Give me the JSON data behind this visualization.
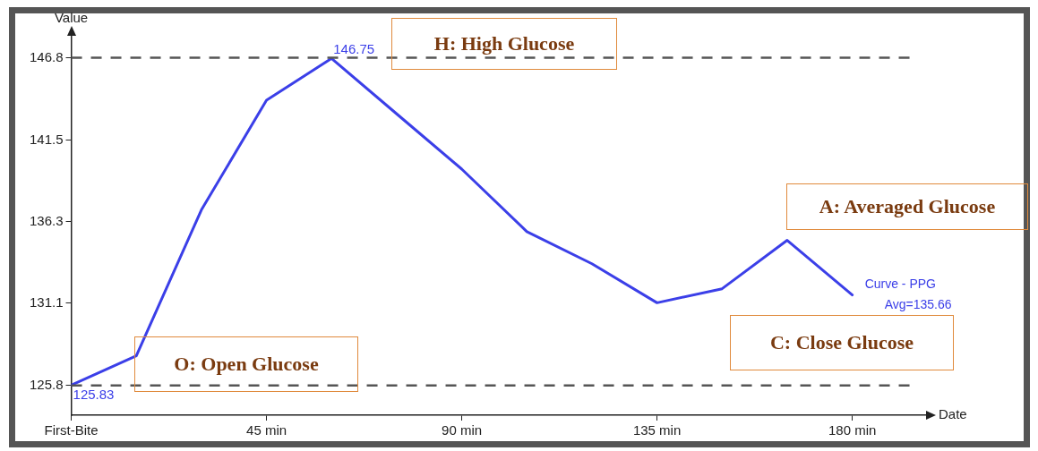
{
  "chart_data": {
    "type": "line",
    "xlabel": "Date",
    "ylabel": "Value",
    "x": [
      0,
      15,
      30,
      45,
      60,
      75,
      90,
      105,
      120,
      135,
      150,
      165,
      180
    ],
    "xlim": [
      0,
      197
    ],
    "xticks": [
      {
        "value": 0,
        "label": "First-Bite"
      },
      {
        "value": 45,
        "label": "45 min"
      },
      {
        "value": 90,
        "label": "90 min"
      },
      {
        "value": 135,
        "label": "135 min"
      },
      {
        "value": 180,
        "label": "180 min"
      }
    ],
    "ylim": [
      123.9,
      148.2
    ],
    "yticks": [
      125.8,
      131.1,
      136.3,
      141.5,
      146.8
    ],
    "series": [
      {
        "name": "Curve - PPG",
        "color": "#3b3fe8",
        "values": [
          125.83,
          127.7,
          137.05,
          144.07,
          146.75,
          143.2,
          139.66,
          135.66,
          133.6,
          131.1,
          132.0,
          135.1,
          131.6
        ],
        "value_labels": [
          "125.83",
          null,
          null,
          null,
          "146.75",
          null,
          null,
          null,
          null,
          null,
          null,
          null,
          null
        ]
      }
    ],
    "ref_lines": [
      {
        "axis": "y",
        "value": 146.8,
        "color": "#555555",
        "line_style": "dashed"
      },
      {
        "axis": "y",
        "value": 125.8,
        "color": "#555555",
        "line_style": "dashed"
      }
    ],
    "annotations": [
      "H: High Glucose",
      "A: Averaged Glucose",
      "C: Close Glucose",
      "O: Open Glucose",
      "Avg=135.66"
    ],
    "grid": false,
    "legend": false,
    "marker": "none",
    "line_style": "solid"
  }
}
